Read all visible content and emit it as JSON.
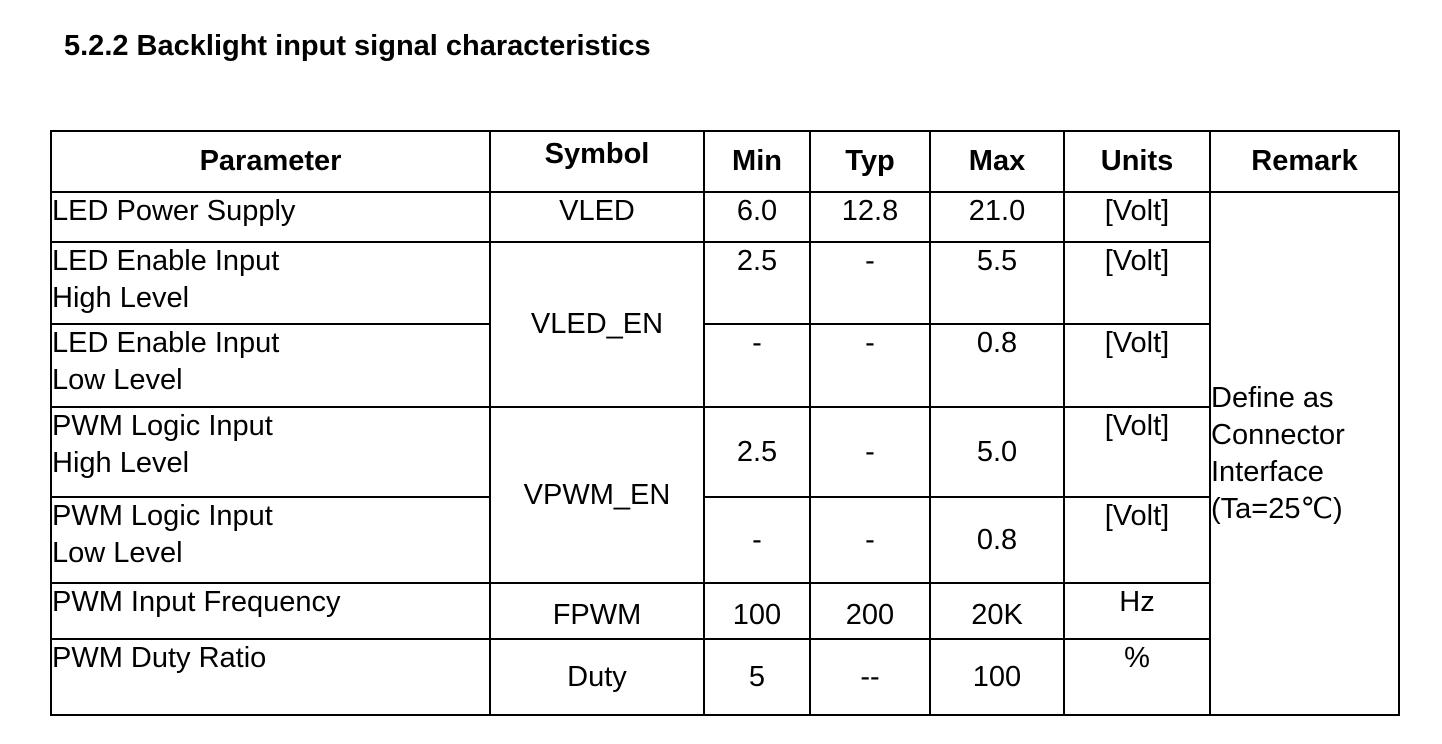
{
  "heading": "5.2.2 Backlight input signal characteristics",
  "columns": {
    "parameter": "Parameter",
    "symbol": "Symbol",
    "min": "Min",
    "typ": "Typ",
    "max": "Max",
    "units": "Units",
    "remark": "Remark"
  },
  "rows": [
    {
      "parameter": [
        "LED Power Supply"
      ],
      "symbol": "VLED",
      "min": "6.0",
      "typ": "12.8",
      "max": "21.0",
      "units": "[Volt]"
    },
    {
      "parameter": [
        "LED Enable Input",
        "High Level"
      ],
      "symbol": "VLED_EN",
      "min": "2.5",
      "typ": "-",
      "max": "5.5",
      "units": "[Volt]"
    },
    {
      "parameter": [
        "LED Enable Input",
        "Low Level"
      ],
      "min": "-",
      "typ": "-",
      "max": "0.8",
      "units": "[Volt]"
    },
    {
      "parameter": [
        "PWM Logic Input",
        "High Level"
      ],
      "symbol": "VPWM_EN",
      "min": "2.5",
      "typ": "-",
      "max": "5.0",
      "units": "[Volt]"
    },
    {
      "parameter": [
        "PWM Logic Input",
        "Low Level"
      ],
      "min": "-",
      "typ": "-",
      "max": "0.8",
      "units": "[Volt]"
    },
    {
      "parameter": [
        "PWM Input Frequency"
      ],
      "symbol": "FPWM",
      "min": "100",
      "typ": "200",
      "max": "20K",
      "units": "Hz"
    },
    {
      "parameter": [
        "PWM Duty Ratio"
      ],
      "symbol": "Duty",
      "min": "5",
      "typ": "--",
      "max": "100",
      "units": "%"
    }
  ],
  "remark": [
    "Define as",
    "Connector",
    "Interface",
    "(Ta=25℃)"
  ]
}
